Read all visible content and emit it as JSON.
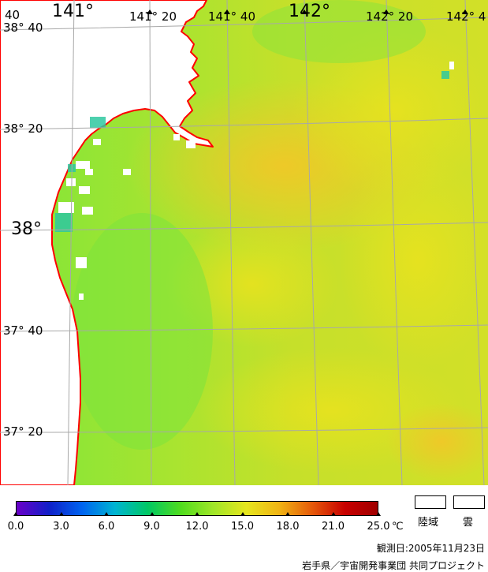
{
  "map": {
    "lon_labels": [
      {
        "text": "141°",
        "size": "big"
      },
      {
        "text": "141° 20",
        "size": "small"
      },
      {
        "text": "141° 40",
        "size": "small"
      },
      {
        "text": "142°",
        "size": "big"
      },
      {
        "text": "142° 20",
        "size": "small"
      },
      {
        "text": "142° 4",
        "size": "small"
      }
    ],
    "lat_labels": [
      {
        "text": "38° 40",
        "size": "small"
      },
      {
        "text": "38° 20",
        "size": "small"
      },
      {
        "text": "38°",
        "size": "big"
      },
      {
        "text": "37° 40",
        "size": "small"
      },
      {
        "text": "37° 20",
        "size": "small"
      }
    ],
    "corner_label": "40",
    "colors": {
      "sea_green": "#8ee63a",
      "sea_yellow": "#e8e21e",
      "sea_orange": "#f0c828",
      "coast": "#ff0000",
      "land": "#ffffff",
      "grid": "#a8a8a8"
    }
  },
  "colorbar": {
    "ticks": [
      "0.0",
      "3.0",
      "6.0",
      "9.0",
      "12.0",
      "15.0",
      "18.0",
      "21.0",
      "25.0"
    ],
    "unit": "℃",
    "stops": [
      "#6a00c8",
      "#1020c8",
      "#0064f0",
      "#00b4d2",
      "#00c864",
      "#50dc1e",
      "#a0e628",
      "#e6e61e",
      "#f0b414",
      "#e65a0a",
      "#c80000",
      "#a00000"
    ]
  },
  "legend": {
    "land_label": "陸域",
    "cloud_label": "雲"
  },
  "footer": {
    "observation_date": "観測日:2005年11月23日",
    "credit": "岩手県／宇宙開発事業団 共同プロジェクト"
  }
}
